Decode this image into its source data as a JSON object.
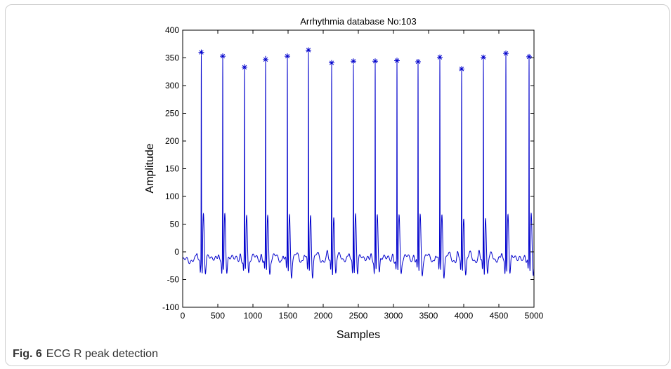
{
  "figure": {
    "caption_label": "Fig. 6",
    "caption_text": "ECG R peak detection"
  },
  "chart_data": {
    "type": "line",
    "title": "Arrhythmia database No:103",
    "xlabel": "Samples",
    "ylabel": "Amplitude",
    "xlim": [
      0,
      5000
    ],
    "ylim": [
      -100,
      400
    ],
    "xticks": [
      0,
      500,
      1000,
      1500,
      2000,
      2500,
      3000,
      3500,
      4000,
      4500,
      5000
    ],
    "yticks": [
      -100,
      -50,
      0,
      50,
      100,
      150,
      200,
      250,
      300,
      350,
      400
    ],
    "grid": false,
    "line_color": "#0000cc",
    "marker_color": "#0000cc",
    "marker": "asterisk",
    "series": [
      {
        "values_description": "ECG waveform",
        "baseline": -15,
        "beats": [
          {
            "x": 265,
            "y": 360
          },
          {
            "x": 570,
            "y": 353
          },
          {
            "x": 880,
            "y": 333
          },
          {
            "x": 1180,
            "y": 347
          },
          {
            "x": 1490,
            "y": 353
          },
          {
            "x": 1790,
            "y": 364
          },
          {
            "x": 2120,
            "y": 341
          },
          {
            "x": 2430,
            "y": 344
          },
          {
            "x": 2740,
            "y": 344
          },
          {
            "x": 3050,
            "y": 345
          },
          {
            "x": 3350,
            "y": 343
          },
          {
            "x": 3660,
            "y": 351
          },
          {
            "x": 3970,
            "y": 330
          },
          {
            "x": 4280,
            "y": 351
          },
          {
            "x": 4600,
            "y": 358
          },
          {
            "x": 4930,
            "y": 352
          }
        ]
      }
    ],
    "r_peaks": [
      {
        "x": 265,
        "y": 360
      },
      {
        "x": 570,
        "y": 353
      },
      {
        "x": 880,
        "y": 333
      },
      {
        "x": 1180,
        "y": 347
      },
      {
        "x": 1490,
        "y": 353
      },
      {
        "x": 1790,
        "y": 364
      },
      {
        "x": 2120,
        "y": 341
      },
      {
        "x": 2430,
        "y": 344
      },
      {
        "x": 2740,
        "y": 344
      },
      {
        "x": 3050,
        "y": 345
      },
      {
        "x": 3350,
        "y": 343
      },
      {
        "x": 3660,
        "y": 351
      },
      {
        "x": 3970,
        "y": 330
      },
      {
        "x": 4280,
        "y": 351
      },
      {
        "x": 4600,
        "y": 358
      },
      {
        "x": 4930,
        "y": 352
      }
    ]
  }
}
